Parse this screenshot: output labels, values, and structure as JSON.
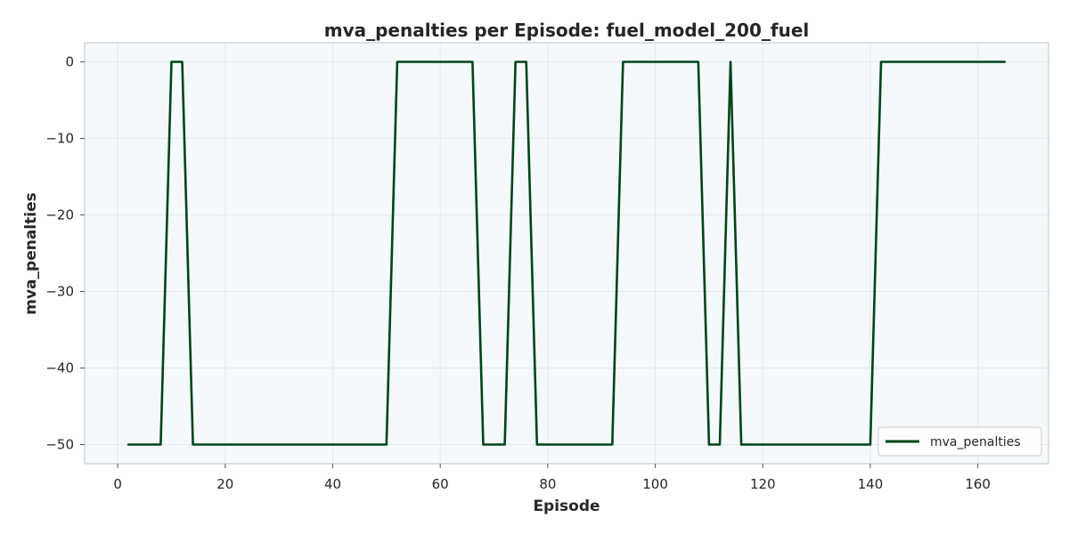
{
  "chart_data": {
    "type": "line",
    "title": "mva_penalties per Episode: fuel_model_200_fuel",
    "xlabel": "Episode",
    "ylabel": "mva_penalties",
    "xlim": [
      -6.15,
      173.15
    ],
    "ylim": [
      -52.5,
      2.5
    ],
    "xticks": [
      0,
      20,
      40,
      60,
      80,
      100,
      120,
      140,
      160
    ],
    "yticks": [
      0,
      -10,
      -20,
      -30,
      -40,
      -50
    ],
    "grid": true,
    "legend_position": "lower-right",
    "colors": {
      "plot_bg": "#f5f9fc",
      "line": "#00441b",
      "grid": "#e3e8ec",
      "spine": "#cccccc"
    },
    "series": [
      {
        "name": "mva_penalties",
        "x": [
          2,
          8,
          10,
          12,
          14,
          50,
          52,
          66,
          68,
          72,
          74,
          76,
          78,
          92,
          94,
          108,
          110,
          112,
          114,
          116,
          140,
          142,
          165
        ],
        "y": [
          -50,
          -50,
          0,
          0,
          -50,
          -50,
          0,
          0,
          -50,
          -50,
          0,
          0,
          -50,
          -50,
          0,
          0,
          -50,
          -50,
          0,
          -50,
          -50,
          0,
          0
        ]
      }
    ]
  }
}
